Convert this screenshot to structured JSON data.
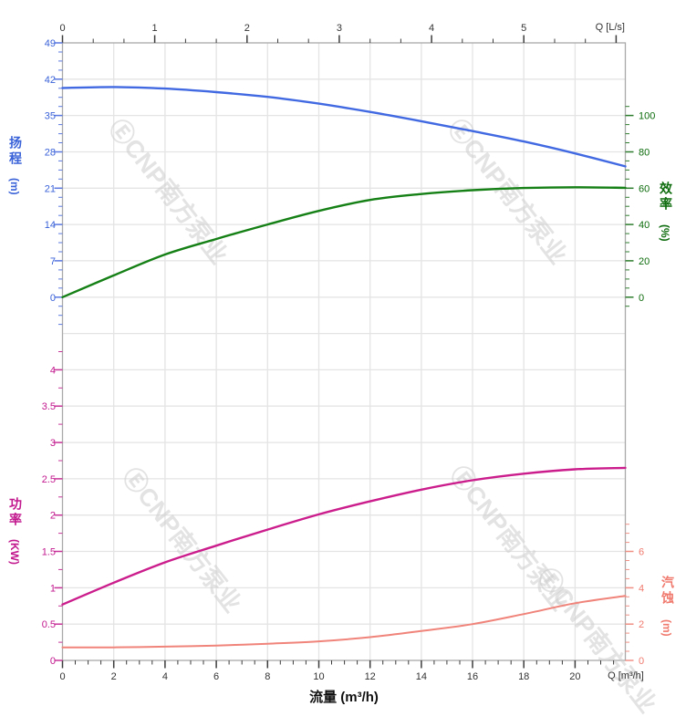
{
  "watermark": {
    "logo": "Ⓔ",
    "text": "CNP南方泵业"
  },
  "chart_data": {
    "type": "line",
    "xlabel": "流量 (m³/h)",
    "x_top": {
      "label": "Q [L/s]",
      "ticks": [
        0,
        1,
        2,
        3,
        4,
        5
      ],
      "max": 6.1
    },
    "x_bottom": {
      "label": "Q [m³/h]",
      "ticks": [
        0,
        2,
        4,
        6,
        8,
        10,
        12,
        14,
        16,
        18,
        20
      ],
      "max": 21.96
    },
    "grid": "on",
    "y_axes": {
      "head": {
        "title": "扬程",
        "unit": "(m)",
        "side": "left",
        "color": "#3a62d8",
        "tick_color": "#5b79e0",
        "ticks": [
          49,
          42,
          35,
          28,
          21,
          14,
          7,
          0
        ],
        "range": [
          0,
          49
        ]
      },
      "efficiency": {
        "title": "效率",
        "unit": "(%)",
        "side": "right",
        "color": "#0c6b0c",
        "tick_color": "#2e7d2e",
        "ticks": [
          100,
          80,
          60,
          40,
          20,
          0
        ],
        "range": [
          0,
          100
        ]
      },
      "power": {
        "title": "功率",
        "unit": "(KW)",
        "side": "left",
        "color": "#c2188e",
        "tick_color": "#c8359a",
        "ticks": [
          4,
          3.5,
          3,
          2.5,
          2,
          1.5,
          1,
          0.5,
          0
        ],
        "range": [
          0,
          4.25
        ]
      },
      "npsh": {
        "title": "汽蚀",
        "unit": "(m)",
        "side": "right",
        "color": "#f07a6e",
        "tick_color": "#f09085",
        "ticks": [
          6,
          4,
          2,
          0
        ],
        "range": [
          0,
          7.5
        ]
      }
    },
    "x": [
      0,
      2,
      4,
      6,
      8,
      10,
      12,
      14,
      16,
      18,
      20,
      21.96
    ],
    "series": [
      {
        "name": "head",
        "axis": "head",
        "color": "#4169e1",
        "values": [
          40.3,
          40.5,
          40.2,
          39.5,
          38.6,
          37.3,
          35.7,
          33.9,
          32.0,
          30.0,
          27.7,
          25.2
        ]
      },
      {
        "name": "efficiency",
        "axis": "efficiency",
        "color": "#158015",
        "values": [
          0,
          12,
          23.5,
          32,
          40,
          47.5,
          53.5,
          56.8,
          58.9,
          60.1,
          60.5,
          60.2
        ]
      },
      {
        "name": "power",
        "axis": "power",
        "color": "#cb1d8c",
        "values": [
          0.77,
          1.07,
          1.35,
          1.58,
          1.8,
          2.01,
          2.19,
          2.35,
          2.48,
          2.57,
          2.63,
          2.65
        ]
      },
      {
        "name": "npsh",
        "axis": "npsh",
        "color": "#f0837a",
        "values": [
          0.72,
          0.72,
          0.76,
          0.82,
          0.92,
          1.05,
          1.28,
          1.62,
          2.0,
          2.55,
          3.15,
          3.55
        ]
      }
    ]
  }
}
